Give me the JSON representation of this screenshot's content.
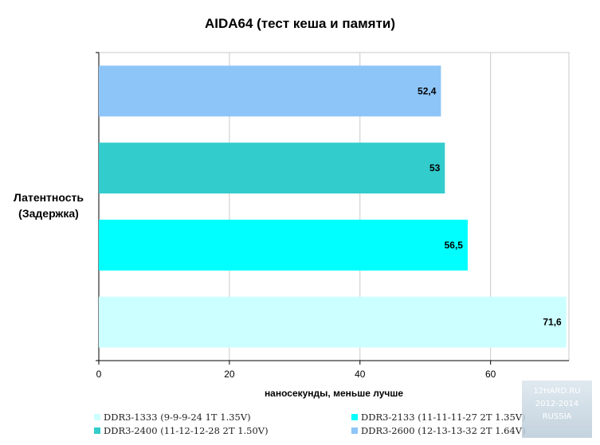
{
  "chart_data": {
    "type": "bar",
    "orientation": "horizontal",
    "title": "AIDA64 (тест кеша и памяти)",
    "ylabel": "Латентность (Задержка)",
    "xlabel": "наносекунды, меньше лучше",
    "xlim": [
      0,
      72
    ],
    "xticks": [
      "0",
      "20",
      "40",
      "60"
    ],
    "grid": true,
    "legend_position": "bottom",
    "series": [
      {
        "name": "DDR3-1333 (9-9-9-24 1T 1.35V)",
        "value": 71.6,
        "label": "71,6",
        "color": "#ccffff"
      },
      {
        "name": "DDR3-2133 (11-11-11-27 2T 1.35V)",
        "value": 56.5,
        "label": "56,5",
        "color": "#00ffff"
      },
      {
        "name": "DDR3-2400 (11-12-12-28 2T 1.50V)",
        "value": 53,
        "label": "53",
        "color": "#33cccc"
      },
      {
        "name": "DDR3-2600 (12-13-13-32 2T 1.64V)",
        "value": 52.4,
        "label": "52,4",
        "color": "#8ec5f8"
      }
    ]
  },
  "watermark": {
    "line1": "12HARD.RU",
    "line2": "2012-2014",
    "line3": "RUSSIA"
  }
}
